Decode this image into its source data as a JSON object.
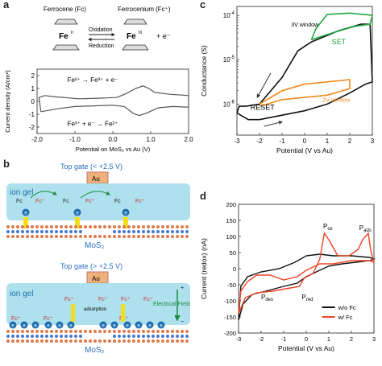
{
  "panel_letters": [
    "a",
    "b",
    "c",
    "d"
  ],
  "panel_a": {
    "top": {
      "ferrocene_label": "Ferrocene (Fc)",
      "ferrocenium_label": "Ferrocenium (Fc⁺)",
      "fe_left": "Fe",
      "fe_left_ox": "II",
      "fe_right": "Fe",
      "fe_right_ox": "III",
      "plus_e": "+ e⁻",
      "oxidation": "Oxidation",
      "reduction": "Reduction"
    },
    "cv_eq_top": "Fe²⁺ → Fe³⁺ + e⁻",
    "cv_eq_bottom": "Fe³⁺ + e⁻ → Fe²⁺"
  },
  "panel_b": {
    "top": {
      "title": "Top gate (< +2.5 V)",
      "au": "Au",
      "ion_gel": "ion gel",
      "fc_labels": [
        "Fc",
        "Fc⁺",
        "Fc",
        "Fc⁺",
        "Fc",
        "Fc⁺"
      ],
      "electron": "e",
      "mos2": "MoS₂"
    },
    "bottom": {
      "title": "Top gate (> +2.5 V)",
      "au": "Au",
      "ion_gel": "ion gel",
      "fc_labels": [
        "Fc⁺",
        "Fc⁺",
        "Fc⁺",
        "Fc⁺",
        "Fc⁺",
        "Fc⁺",
        "Fc⁺"
      ],
      "adsorption": "adsorption",
      "electrical_field": "Electrical Field",
      "plus": "+",
      "minus": "−",
      "electron": "e",
      "mos2": "MoS₂"
    }
  },
  "chart_data": [
    {
      "panel": "a",
      "type": "line",
      "xlabel": "Potential on MoS₂ vs Au (V)",
      "ylabel": "Current density (A/cm²)",
      "xlim": [
        -2.0,
        2.0
      ],
      "ylim": [
        -2.5,
        2.5
      ],
      "x_ticks": [
        -2.0,
        -1.0,
        0.0,
        1.0,
        2.0
      ],
      "y_ticks": [
        -2,
        -1,
        0,
        1,
        2
      ],
      "series": [
        {
          "color": "#555555",
          "points": [
            [
              -1.9,
              -0.8
            ],
            [
              -1.4,
              -0.55
            ],
            [
              -1.0,
              -0.4
            ],
            [
              -0.5,
              -0.35
            ],
            [
              0.0,
              -0.3
            ],
            [
              0.3,
              -0.4
            ],
            [
              0.55,
              -0.95
            ],
            [
              0.7,
              -1.1
            ],
            [
              0.9,
              -0.9
            ],
            [
              1.2,
              -0.5
            ],
            [
              1.6,
              -0.4
            ],
            [
              2.0,
              -0.45
            ],
            [
              2.0,
              0.45
            ],
            [
              1.5,
              0.55
            ],
            [
              1.1,
              0.7
            ],
            [
              0.95,
              1.0
            ],
            [
              0.8,
              1.2
            ],
            [
              0.6,
              1.0
            ],
            [
              0.35,
              0.6
            ],
            [
              0.1,
              0.3
            ],
            [
              -0.3,
              0.25
            ],
            [
              -0.9,
              0.2
            ],
            [
              -1.5,
              0.35
            ],
            [
              -1.8,
              0.45
            ],
            [
              -1.95,
              0.3
            ],
            [
              -1.9,
              -0.8
            ]
          ]
        }
      ]
    },
    {
      "panel": "c",
      "type": "line",
      "xlabel": "Potential (V vs Au)",
      "ylabel": "Conductance (S)",
      "xlim": [
        -3,
        3
      ],
      "ylim_log": [
        -6.7,
        -3.8
      ],
      "x_ticks": [
        -3,
        -2,
        -1,
        0,
        1,
        2,
        3
      ],
      "y_ticks_exp": [
        -6,
        -5,
        -4
      ],
      "annotations": [
        "3V window",
        "SET",
        "2V window",
        "RESET"
      ],
      "series": [
        {
          "name": "3V window",
          "color": "#111111",
          "points": [
            [
              -3.0,
              -6.2
            ],
            [
              -2.5,
              -6.35
            ],
            [
              -2.0,
              -6.35
            ],
            [
              -1.0,
              -6.25
            ],
            [
              0.0,
              -6.15
            ],
            [
              1.0,
              -6.0
            ],
            [
              2.0,
              -5.75
            ],
            [
              2.7,
              -5.55
            ],
            [
              3.0,
              -5.5
            ],
            [
              2.9,
              -4.2
            ],
            [
              2.5,
              -4.2
            ],
            [
              1.5,
              -4.35
            ],
            [
              0.3,
              -4.6
            ],
            [
              -0.3,
              -4.8
            ],
            [
              -1.0,
              -5.4
            ],
            [
              -2.0,
              -6.0
            ],
            [
              -2.6,
              -6.05
            ],
            [
              -2.9,
              -6.05
            ],
            [
              -3.0,
              -6.2
            ]
          ]
        },
        {
          "name": "SET",
          "color": "#22aa44",
          "points": [
            [
              0.3,
              -4.55
            ],
            [
              1.2,
              -4.4
            ],
            [
              2.2,
              -4.25
            ],
            [
              2.9,
              -4.2
            ],
            [
              3.0,
              -4.0
            ],
            [
              2.0,
              -3.95
            ],
            [
              1.0,
              -3.98
            ],
            [
              0.5,
              -4.3
            ],
            [
              0.3,
              -4.55
            ]
          ]
        },
        {
          "name": "2V window",
          "color": "#f08a1c",
          "points": [
            [
              -2.0,
              -6.0
            ],
            [
              -1.0,
              -5.7
            ],
            [
              0.0,
              -5.55
            ],
            [
              1.0,
              -5.5
            ],
            [
              2.0,
              -5.45
            ],
            [
              2.0,
              -5.65
            ],
            [
              1.0,
              -5.8
            ],
            [
              0.0,
              -5.85
            ],
            [
              -1.0,
              -5.9
            ],
            [
              -2.0,
              -6.05
            ]
          ]
        }
      ]
    },
    {
      "panel": "d",
      "type": "line",
      "xlabel": "Potential (V vs Au)",
      "ylabel": "Current (redox) (nA)",
      "xlim": [
        -3,
        3
      ],
      "ylim": [
        -200,
        200
      ],
      "x_ticks": [
        -3,
        -2,
        -1,
        0,
        1,
        2,
        3
      ],
      "y_ticks": [
        -200,
        -150,
        -100,
        -50,
        0,
        50,
        100,
        150,
        200
      ],
      "annotations": [
        "P",
        "ox",
        "P",
        "ads",
        "P",
        "des",
        "P",
        "red"
      ],
      "legend": [
        "w/o Fc",
        "w/ Fc"
      ],
      "legend_position": "bottom-right",
      "series": [
        {
          "name": "w/o Fc",
          "color": "#111111",
          "points": [
            [
              -3.0,
              -160
            ],
            [
              -2.8,
              -110
            ],
            [
              -2.4,
              -80
            ],
            [
              -1.8,
              -70
            ],
            [
              -1.0,
              -55
            ],
            [
              -0.4,
              -45
            ],
            [
              0.0,
              -25
            ],
            [
              0.5,
              -8
            ],
            [
              1.0,
              8
            ],
            [
              1.6,
              15
            ],
            [
              2.2,
              20
            ],
            [
              2.8,
              25
            ],
            [
              3.0,
              30
            ],
            [
              2.8,
              35
            ],
            [
              2.0,
              40
            ],
            [
              1.2,
              40
            ],
            [
              0.6,
              45
            ],
            [
              0.0,
              40
            ],
            [
              -0.5,
              20
            ],
            [
              -1.2,
              0
            ],
            [
              -2.0,
              -10
            ],
            [
              -2.6,
              -25
            ],
            [
              -2.9,
              -55
            ],
            [
              -3.0,
              -160
            ]
          ]
        },
        {
          "name": "w/ Fc",
          "color": "#ee4422",
          "points": [
            [
              -3.0,
              -140
            ],
            [
              -2.7,
              -90
            ],
            [
              -2.2,
              -75
            ],
            [
              -1.5,
              -70
            ],
            [
              -0.7,
              -60
            ],
            [
              -0.3,
              -55
            ],
            [
              -0.1,
              -30
            ],
            [
              0.3,
              -15
            ],
            [
              0.6,
              30
            ],
            [
              0.8,
              110
            ],
            [
              1.0,
              90
            ],
            [
              1.4,
              40
            ],
            [
              1.9,
              40
            ],
            [
              2.3,
              60
            ],
            [
              2.5,
              90
            ],
            [
              2.75,
              110
            ],
            [
              2.85,
              60
            ],
            [
              3.0,
              20
            ],
            [
              2.8,
              25
            ],
            [
              2.0,
              25
            ],
            [
              1.2,
              15
            ],
            [
              0.6,
              15
            ],
            [
              0.0,
              -5
            ],
            [
              -0.4,
              -25
            ],
            [
              -1.0,
              -35
            ],
            [
              -1.6,
              -20
            ],
            [
              -2.2,
              -20
            ],
            [
              -2.6,
              -40
            ],
            [
              -2.9,
              -70
            ],
            [
              -3.0,
              -140
            ]
          ]
        }
      ]
    }
  ]
}
